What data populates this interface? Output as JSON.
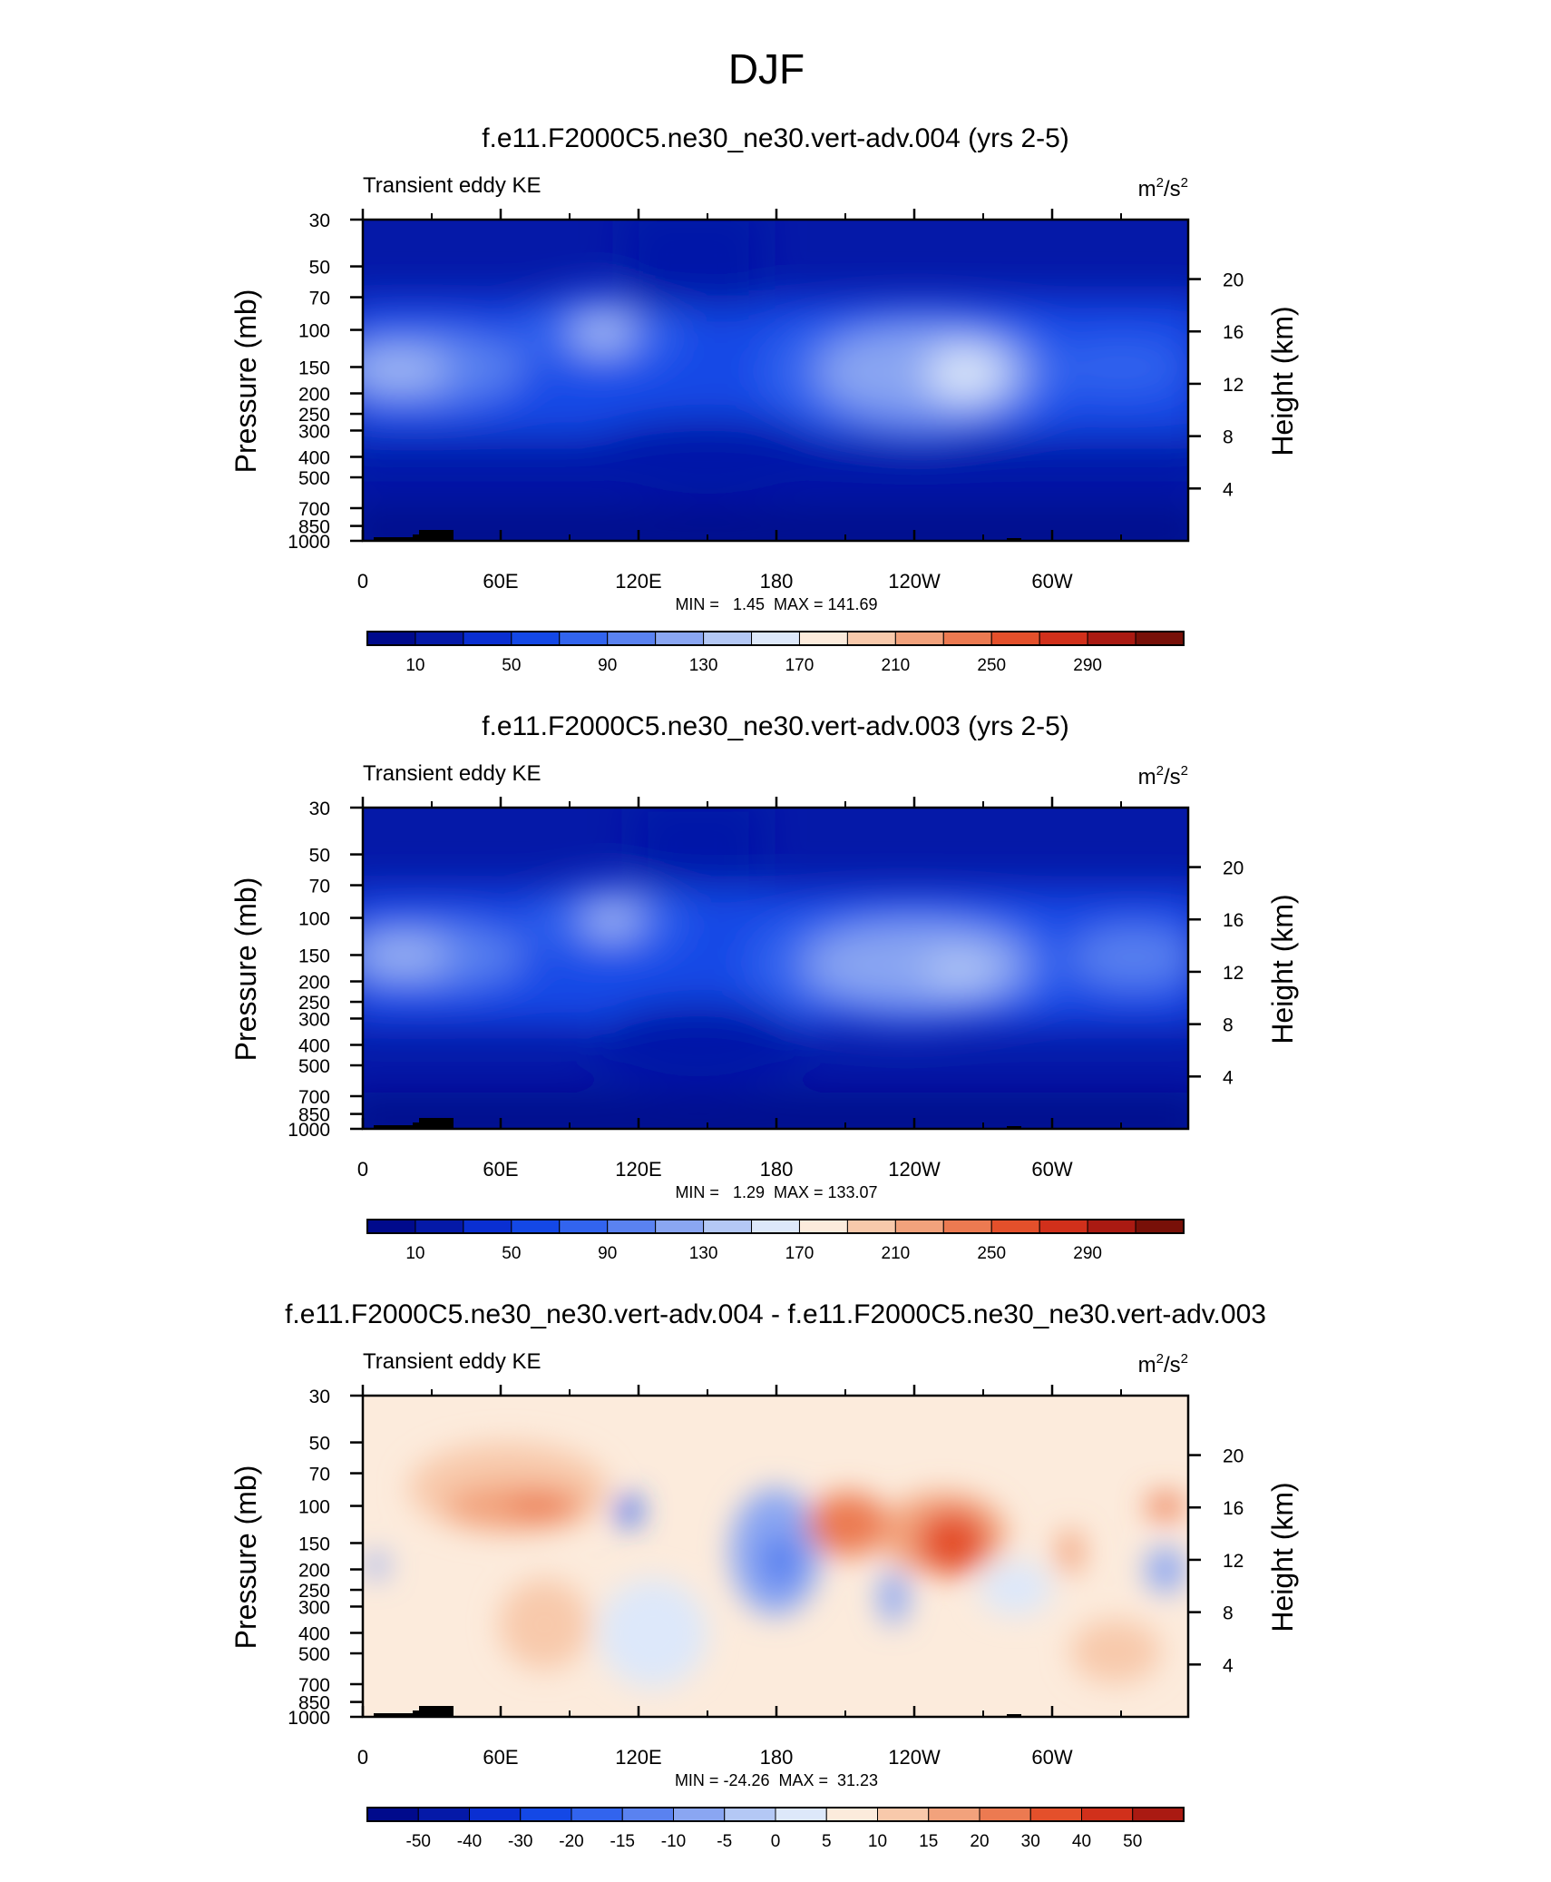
{
  "figure": {
    "title": "DJF"
  },
  "chart_data": [
    {
      "type": "heatmap",
      "title": "f.e11.F2000C5.ne30_ne30.vert-adv.004 (yrs 2-5)",
      "left_label": "Transient eddy KE",
      "units_base": "m",
      "units_exp1": "2",
      "units_mid": "/s",
      "units_exp2": "2",
      "ylabel": "Pressure (mb)",
      "y2label": "Height (km)",
      "x_ticks": [
        "0",
        "60E",
        "120E",
        "180",
        "120W",
        "60W"
      ],
      "y_ticks": [
        "30",
        "50",
        "70",
        "100",
        "150",
        "200",
        "250",
        "300",
        "400",
        "500",
        "700",
        "850",
        "1000"
      ],
      "y2_ticks": [
        "20",
        "16",
        "12",
        "8",
        "4"
      ],
      "ylim": [
        1000,
        30
      ],
      "stats": "MIN =   1.45  MAX = 141.69",
      "colorbar_labels": [
        "10",
        "50",
        "90",
        "130",
        "170",
        "210",
        "250",
        "290"
      ],
      "colorbar_colors": [
        "#000a8c",
        "#0519a8",
        "#0a2fd2",
        "#1448e6",
        "#3264ee",
        "#5a82f0",
        "#8aa6f2",
        "#b4c8f5",
        "#dde8fa",
        "#fcebdc",
        "#f8c9ab",
        "#f2a27c",
        "#ec7a51",
        "#e4502b",
        "#d1301b",
        "#aa1a12",
        "#781008"
      ]
    },
    {
      "type": "heatmap",
      "title": "f.e11.F2000C5.ne30_ne30.vert-adv.003 (yrs 2-5)",
      "left_label": "Transient eddy KE",
      "units_base": "m",
      "units_exp1": "2",
      "units_mid": "/s",
      "units_exp2": "2",
      "ylabel": "Pressure (mb)",
      "y2label": "Height (km)",
      "x_ticks": [
        "0",
        "60E",
        "120E",
        "180",
        "120W",
        "60W"
      ],
      "y_ticks": [
        "30",
        "50",
        "70",
        "100",
        "150",
        "200",
        "250",
        "300",
        "400",
        "500",
        "700",
        "850",
        "1000"
      ],
      "y2_ticks": [
        "20",
        "16",
        "12",
        "8",
        "4"
      ],
      "ylim": [
        1000,
        30
      ],
      "stats": "MIN =   1.29  MAX = 133.07",
      "colorbar_labels": [
        "10",
        "50",
        "90",
        "130",
        "170",
        "210",
        "250",
        "290"
      ],
      "colorbar_colors": [
        "#000a8c",
        "#0519a8",
        "#0a2fd2",
        "#1448e6",
        "#3264ee",
        "#5a82f0",
        "#8aa6f2",
        "#b4c8f5",
        "#dde8fa",
        "#fcebdc",
        "#f8c9ab",
        "#f2a27c",
        "#ec7a51",
        "#e4502b",
        "#d1301b",
        "#aa1a12",
        "#781008"
      ]
    },
    {
      "type": "heatmap",
      "title": "f.e11.F2000C5.ne30_ne30.vert-adv.004 - f.e11.F2000C5.ne30_ne30.vert-adv.003",
      "left_label": "Transient eddy KE",
      "units_base": "m",
      "units_exp1": "2",
      "units_mid": "/s",
      "units_exp2": "2",
      "ylabel": "Pressure (mb)",
      "y2label": "Height (km)",
      "x_ticks": [
        "0",
        "60E",
        "120E",
        "180",
        "120W",
        "60W"
      ],
      "y_ticks": [
        "30",
        "50",
        "70",
        "100",
        "150",
        "200",
        "250",
        "300",
        "400",
        "500",
        "700",
        "850",
        "1000"
      ],
      "y2_ticks": [
        "20",
        "16",
        "12",
        "8",
        "4"
      ],
      "ylim": [
        1000,
        30
      ],
      "stats": "MIN = -24.26  MAX =  31.23",
      "colorbar_labels": [
        "-50",
        "-40",
        "-30",
        "-20",
        "-15",
        "-10",
        "-5",
        "0",
        "5",
        "10",
        "15",
        "20",
        "30",
        "40",
        "50"
      ],
      "colorbar_colors": [
        "#000a8c",
        "#0519a8",
        "#0a2fd2",
        "#1448e6",
        "#3264ee",
        "#5a82f0",
        "#8aa6f2",
        "#b4c8f5",
        "#dde8fa",
        "#fcebdc",
        "#f8c9ab",
        "#f2a27c",
        "#ec7a51",
        "#e4502b",
        "#d1301b",
        "#aa1a12"
      ]
    }
  ]
}
